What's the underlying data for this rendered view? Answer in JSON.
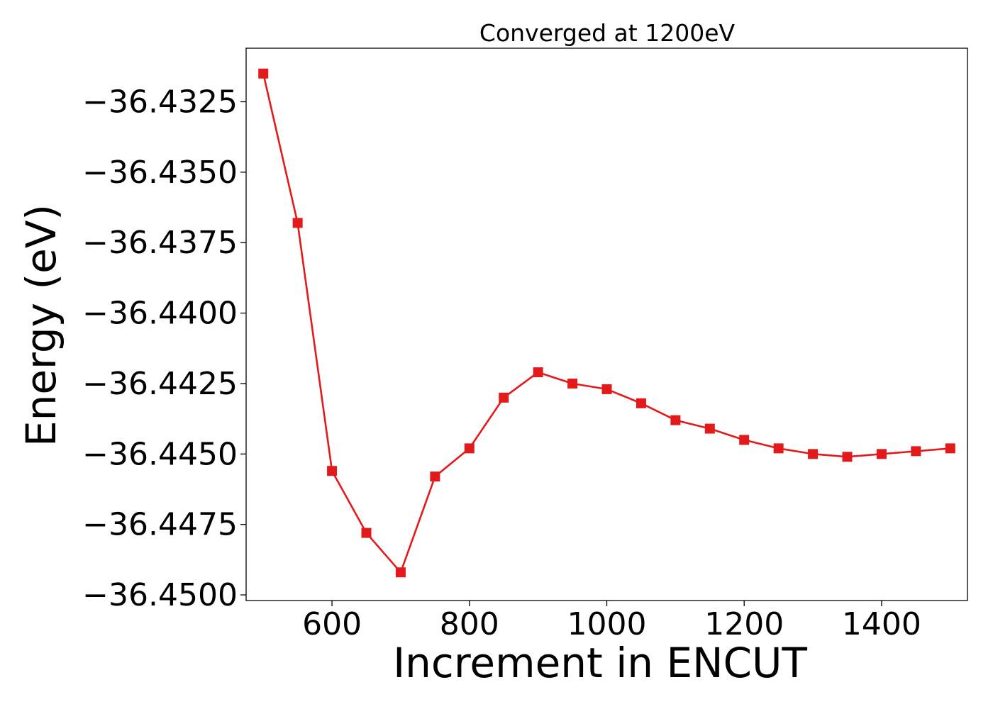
{
  "chart_data": {
    "type": "line",
    "title": "Converged at 1200eV",
    "xlabel": "Increment in ENCUT",
    "ylabel": "Energy (eV)",
    "xlim": [
      475,
      1525
    ],
    "ylim": [
      -36.4502,
      -36.4306
    ],
    "xticks": [
      600,
      800,
      1000,
      1200,
      1400
    ],
    "xtick_labels": [
      "600",
      "800",
      "1000",
      "1200",
      "1400"
    ],
    "yticks": [
      -36.4325,
      -36.435,
      -36.4375,
      -36.44,
      -36.4425,
      -36.445,
      -36.4475,
      -36.45
    ],
    "ytick_labels": [
      "−36.4325",
      "−36.4350",
      "−36.4375",
      "−36.4400",
      "−36.4425",
      "−36.4450",
      "−36.4475",
      "−36.4500"
    ],
    "grid": false,
    "series": [
      {
        "color": "#e31a1c",
        "marker": "square",
        "x": [
          500,
          550,
          600,
          650,
          700,
          750,
          800,
          850,
          900,
          950,
          1000,
          1050,
          1100,
          1150,
          1200,
          1250,
          1300,
          1350,
          1400,
          1450,
          1500
        ],
        "y": [
          -36.4315,
          -36.4368,
          -36.4456,
          -36.4478,
          -36.4492,
          -36.4458,
          -36.4448,
          -36.443,
          -36.4421,
          -36.4425,
          -36.4427,
          -36.4432,
          -36.4438,
          -36.4441,
          -36.4445,
          -36.4448,
          -36.445,
          -36.4451,
          -36.445,
          -36.4449,
          -36.4448
        ]
      }
    ]
  }
}
